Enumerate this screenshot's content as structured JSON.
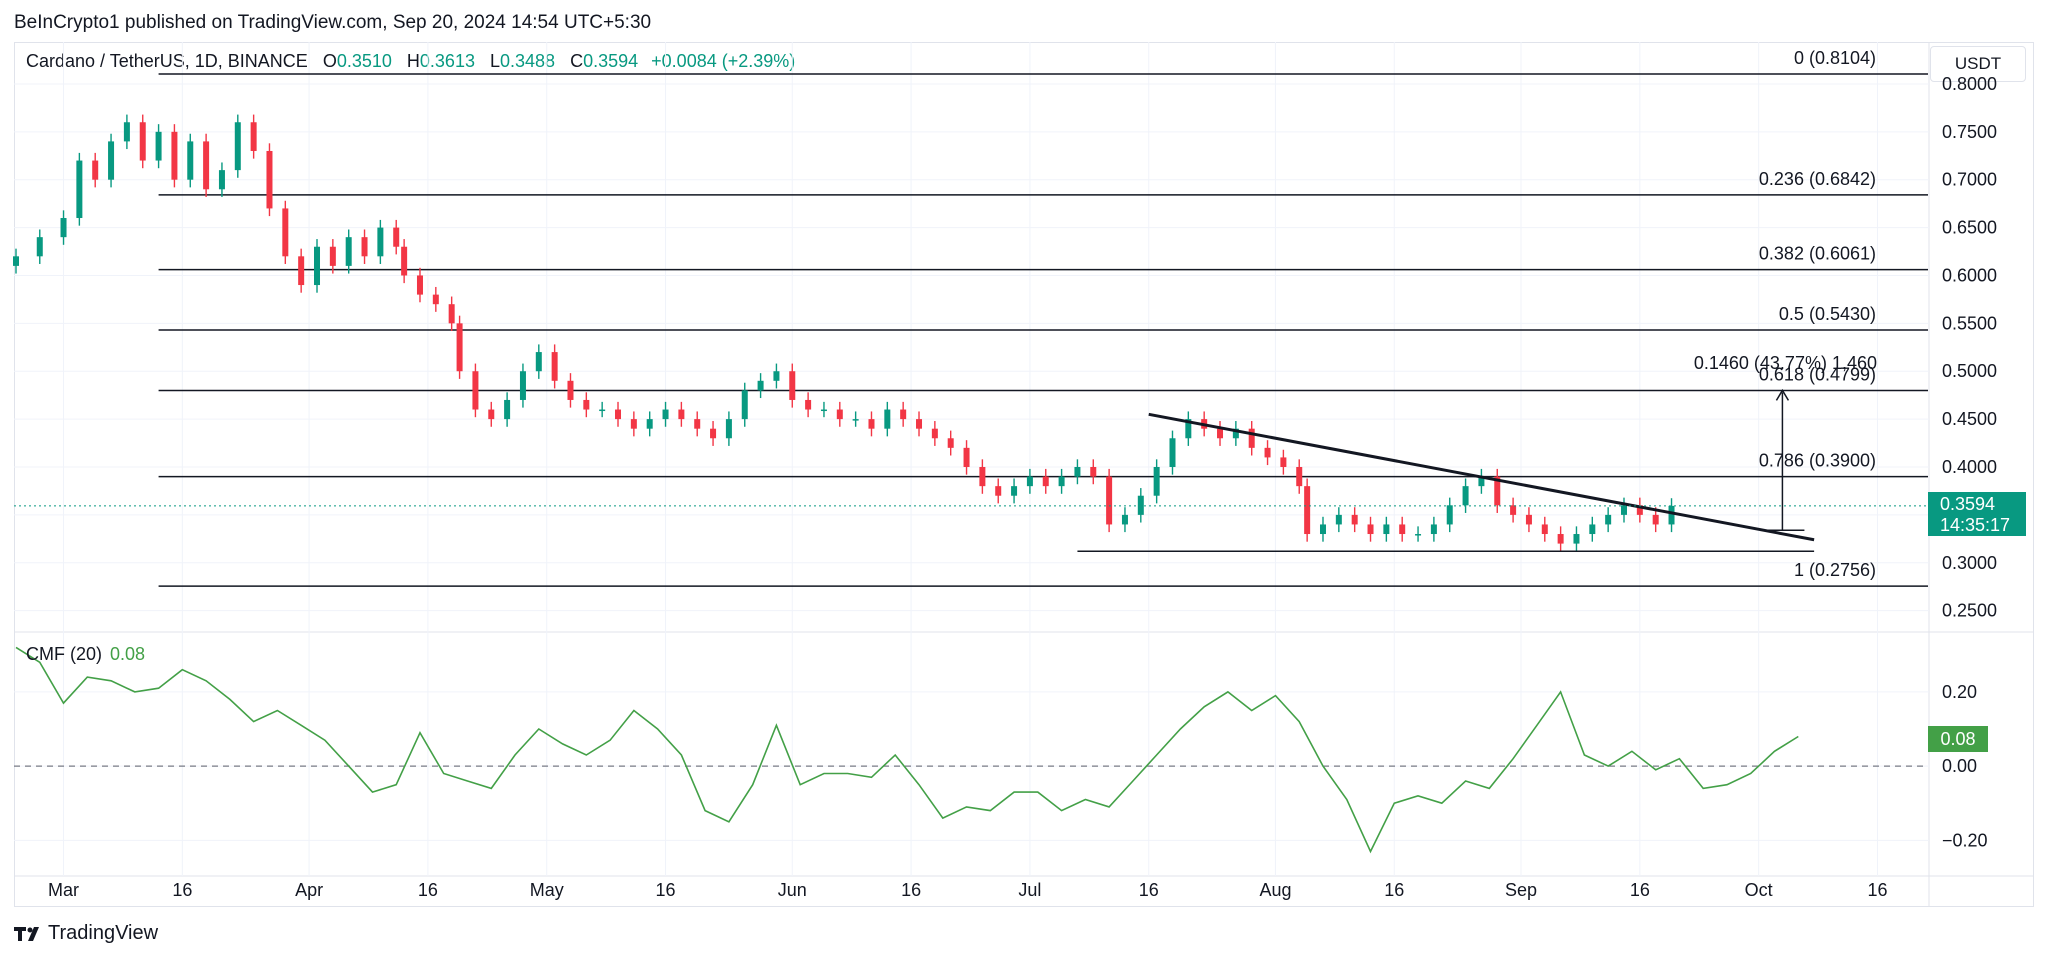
{
  "header": {
    "publisher": "BeInCrypto1 published on TradingView.com, Sep 20, 2024 14:54 UTC+5:30"
  },
  "legend": {
    "symbol": "Cardano / TetherUS, 1D, BINANCE",
    "open_label": "O",
    "open": "0.3510",
    "high_label": "H",
    "high": "0.3613",
    "low_label": "L",
    "low": "0.3488",
    "close_label": "C",
    "close": "0.3594",
    "change": "+0.0084 (+2.39%)"
  },
  "currency": "USDT",
  "price_badge": {
    "price": "0.3594",
    "countdown": "14:35:17"
  },
  "cmf": {
    "label": "CMF (20)",
    "value": "0.08",
    "badge": "0.08"
  },
  "footer": {
    "brand": "TradingView"
  },
  "colors": {
    "up": "#089981",
    "down": "#f23645",
    "cmf_line": "#43a047",
    "fib_line": "#131722"
  },
  "chart_data": [
    {
      "type": "candlestick",
      "x_range": [
        "2024-02-24",
        "2024-10-22"
      ],
      "ylim": [
        0.235,
        0.825
      ],
      "y_ticks": [
        0.25,
        0.3,
        0.35,
        0.4,
        0.45,
        0.5,
        0.55,
        0.6,
        0.65,
        0.7,
        0.75,
        0.8
      ],
      "y_tick_labels": [
        "0.2500",
        "0.3000",
        "0.3500",
        "0.4000",
        "0.4500",
        "0.5000",
        "0.5500",
        "0.6000",
        "0.6500",
        "0.7000",
        "0.7500",
        "0.8000"
      ],
      "x_ticks": [
        {
          "date": "2024-03-01",
          "label": "Mar"
        },
        {
          "date": "2024-03-16",
          "label": "16"
        },
        {
          "date": "2024-04-01",
          "label": "Apr"
        },
        {
          "date": "2024-04-16",
          "label": "16"
        },
        {
          "date": "2024-05-01",
          "label": "May"
        },
        {
          "date": "2024-05-16",
          "label": "16"
        },
        {
          "date": "2024-06-01",
          "label": "Jun"
        },
        {
          "date": "2024-06-16",
          "label": "16"
        },
        {
          "date": "2024-07-01",
          "label": "Jul"
        },
        {
          "date": "2024-07-16",
          "label": "16"
        },
        {
          "date": "2024-08-01",
          "label": "Aug"
        },
        {
          "date": "2024-08-16",
          "label": "16"
        },
        {
          "date": "2024-09-01",
          "label": "Sep"
        },
        {
          "date": "2024-09-16",
          "label": "16"
        },
        {
          "date": "2024-10-01",
          "label": "Oct"
        },
        {
          "date": "2024-10-16",
          "label": "16"
        }
      ],
      "closes": [
        [
          "2024-02-24",
          0.62
        ],
        [
          "2024-02-27",
          0.64
        ],
        [
          "2024-03-01",
          0.66
        ],
        [
          "2024-03-03",
          0.72
        ],
        [
          "2024-03-05",
          0.7
        ],
        [
          "2024-03-07",
          0.74
        ],
        [
          "2024-03-09",
          0.76
        ],
        [
          "2024-03-11",
          0.72
        ],
        [
          "2024-03-13",
          0.75
        ],
        [
          "2024-03-15",
          0.7
        ],
        [
          "2024-03-17",
          0.74
        ],
        [
          "2024-03-19",
          0.69
        ],
        [
          "2024-03-21",
          0.71
        ],
        [
          "2024-03-23",
          0.76
        ],
        [
          "2024-03-25",
          0.73
        ],
        [
          "2024-03-27",
          0.67
        ],
        [
          "2024-03-29",
          0.62
        ],
        [
          "2024-03-31",
          0.59
        ],
        [
          "2024-04-02",
          0.63
        ],
        [
          "2024-04-04",
          0.61
        ],
        [
          "2024-04-06",
          0.64
        ],
        [
          "2024-04-08",
          0.62
        ],
        [
          "2024-04-10",
          0.65
        ],
        [
          "2024-04-12",
          0.63
        ],
        [
          "2024-04-13",
          0.6
        ],
        [
          "2024-04-15",
          0.58
        ],
        [
          "2024-04-17",
          0.57
        ],
        [
          "2024-04-19",
          0.55
        ],
        [
          "2024-04-20",
          0.5
        ],
        [
          "2024-04-22",
          0.46
        ],
        [
          "2024-04-24",
          0.45
        ],
        [
          "2024-04-26",
          0.47
        ],
        [
          "2024-04-28",
          0.5
        ],
        [
          "2024-04-30",
          0.52
        ],
        [
          "2024-05-02",
          0.49
        ],
        [
          "2024-05-04",
          0.47
        ],
        [
          "2024-05-06",
          0.46
        ],
        [
          "2024-05-08",
          0.46
        ],
        [
          "2024-05-10",
          0.45
        ],
        [
          "2024-05-12",
          0.44
        ],
        [
          "2024-05-14",
          0.45
        ],
        [
          "2024-05-16",
          0.46
        ],
        [
          "2024-05-18",
          0.45
        ],
        [
          "2024-05-20",
          0.44
        ],
        [
          "2024-05-22",
          0.43
        ],
        [
          "2024-05-24",
          0.45
        ],
        [
          "2024-05-26",
          0.48
        ],
        [
          "2024-05-28",
          0.49
        ],
        [
          "2024-05-30",
          0.5
        ],
        [
          "2024-06-01",
          0.47
        ],
        [
          "2024-06-03",
          0.46
        ],
        [
          "2024-06-05",
          0.46
        ],
        [
          "2024-06-07",
          0.45
        ],
        [
          "2024-06-09",
          0.45
        ],
        [
          "2024-06-11",
          0.44
        ],
        [
          "2024-06-13",
          0.46
        ],
        [
          "2024-06-15",
          0.45
        ],
        [
          "2024-06-17",
          0.44
        ],
        [
          "2024-06-19",
          0.43
        ],
        [
          "2024-06-21",
          0.42
        ],
        [
          "2024-06-23",
          0.4
        ],
        [
          "2024-06-25",
          0.38
        ],
        [
          "2024-06-27",
          0.37
        ],
        [
          "2024-06-29",
          0.38
        ],
        [
          "2024-07-01",
          0.39
        ],
        [
          "2024-07-03",
          0.38
        ],
        [
          "2024-07-05",
          0.39
        ],
        [
          "2024-07-07",
          0.4
        ],
        [
          "2024-07-09",
          0.39
        ],
        [
          "2024-07-11",
          0.34
        ],
        [
          "2024-07-13",
          0.35
        ],
        [
          "2024-07-15",
          0.37
        ],
        [
          "2024-07-17",
          0.4
        ],
        [
          "2024-07-19",
          0.43
        ],
        [
          "2024-07-21",
          0.45
        ],
        [
          "2024-07-23",
          0.44
        ],
        [
          "2024-07-25",
          0.43
        ],
        [
          "2024-07-27",
          0.44
        ],
        [
          "2024-07-29",
          0.42
        ],
        [
          "2024-07-31",
          0.41
        ],
        [
          "2024-08-02",
          0.4
        ],
        [
          "2024-08-04",
          0.38
        ],
        [
          "2024-08-05",
          0.33
        ],
        [
          "2024-08-07",
          0.34
        ],
        [
          "2024-08-09",
          0.35
        ],
        [
          "2024-08-11",
          0.34
        ],
        [
          "2024-08-13",
          0.33
        ],
        [
          "2024-08-15",
          0.34
        ],
        [
          "2024-08-17",
          0.33
        ],
        [
          "2024-08-19",
          0.33
        ],
        [
          "2024-08-21",
          0.34
        ],
        [
          "2024-08-23",
          0.36
        ],
        [
          "2024-08-25",
          0.38
        ],
        [
          "2024-08-27",
          0.39
        ],
        [
          "2024-08-29",
          0.36
        ],
        [
          "2024-08-31",
          0.35
        ],
        [
          "2024-09-02",
          0.34
        ],
        [
          "2024-09-04",
          0.33
        ],
        [
          "2024-09-06",
          0.32
        ],
        [
          "2024-09-08",
          0.33
        ],
        [
          "2024-09-10",
          0.34
        ],
        [
          "2024-09-12",
          0.35
        ],
        [
          "2024-09-14",
          0.36
        ],
        [
          "2024-09-16",
          0.35
        ],
        [
          "2024-09-18",
          0.34
        ],
        [
          "2024-09-20",
          0.3594
        ]
      ],
      "fibonacci": [
        {
          "level": "0",
          "price": 0.8104,
          "label": "0 (0.8104)"
        },
        {
          "level": "0.236",
          "price": 0.6842,
          "label": "0.236 (0.6842)"
        },
        {
          "level": "0.382",
          "price": 0.6061,
          "label": "0.382 (0.6061)"
        },
        {
          "level": "0.5",
          "price": 0.543,
          "label": "0.5 (0.5430)"
        },
        {
          "level": "0.618",
          "price": 0.4799,
          "label": "0.618 (0.4799)"
        },
        {
          "level": "0.786",
          "price": 0.39,
          "label": "0.786 (0.3900)"
        },
        {
          "level": "1",
          "price": 0.2756,
          "label": "1 (0.2756)"
        }
      ],
      "fib_start": "2024-03-13",
      "trendline": {
        "from": [
          "2024-07-16",
          0.455
        ],
        "to": [
          "2024-10-08",
          0.324
        ]
      },
      "support_line": {
        "from": [
          "2024-07-07",
          0.312
        ],
        "to": [
          "2024-10-08",
          0.312
        ]
      },
      "measure": {
        "label": "0.1460 (43.77%) 1,460",
        "from": [
          "2024-10-04",
          0.334
        ],
        "to": [
          "2024-10-04",
          0.48
        ]
      },
      "current_price": 0.3594
    },
    {
      "type": "line",
      "name": "CMF (20)",
      "ylim": [
        -0.28,
        0.34
      ],
      "y_ticks": [
        0.2,
        0.0,
        -0.2
      ],
      "y_tick_labels": [
        "0.20",
        "0.00",
        "−0.20"
      ],
      "zero_line": 0.0,
      "points": [
        [
          "2024-02-24",
          0.32
        ],
        [
          "2024-02-27",
          0.28
        ],
        [
          "2024-03-01",
          0.17
        ],
        [
          "2024-03-04",
          0.24
        ],
        [
          "2024-03-07",
          0.23
        ],
        [
          "2024-03-10",
          0.2
        ],
        [
          "2024-03-13",
          0.21
        ],
        [
          "2024-03-16",
          0.26
        ],
        [
          "2024-03-19",
          0.23
        ],
        [
          "2024-03-22",
          0.18
        ],
        [
          "2024-03-25",
          0.12
        ],
        [
          "2024-03-28",
          0.15
        ],
        [
          "2024-03-31",
          0.11
        ],
        [
          "2024-04-03",
          0.07
        ],
        [
          "2024-04-06",
          0.0
        ],
        [
          "2024-04-09",
          -0.07
        ],
        [
          "2024-04-12",
          -0.05
        ],
        [
          "2024-04-15",
          0.09
        ],
        [
          "2024-04-18",
          -0.02
        ],
        [
          "2024-04-21",
          -0.04
        ],
        [
          "2024-04-24",
          -0.06
        ],
        [
          "2024-04-27",
          0.03
        ],
        [
          "2024-04-30",
          0.1
        ],
        [
          "2024-05-03",
          0.06
        ],
        [
          "2024-05-06",
          0.03
        ],
        [
          "2024-05-09",
          0.07
        ],
        [
          "2024-05-12",
          0.15
        ],
        [
          "2024-05-15",
          0.1
        ],
        [
          "2024-05-18",
          0.03
        ],
        [
          "2024-05-21",
          -0.12
        ],
        [
          "2024-05-24",
          -0.15
        ],
        [
          "2024-05-27",
          -0.05
        ],
        [
          "2024-05-30",
          0.11
        ],
        [
          "2024-06-02",
          -0.05
        ],
        [
          "2024-06-05",
          -0.02
        ],
        [
          "2024-06-08",
          -0.02
        ],
        [
          "2024-06-11",
          -0.03
        ],
        [
          "2024-06-14",
          0.03
        ],
        [
          "2024-06-17",
          -0.05
        ],
        [
          "2024-06-20",
          -0.14
        ],
        [
          "2024-06-23",
          -0.11
        ],
        [
          "2024-06-26",
          -0.12
        ],
        [
          "2024-06-29",
          -0.07
        ],
        [
          "2024-07-02",
          -0.07
        ],
        [
          "2024-07-05",
          -0.12
        ],
        [
          "2024-07-08",
          -0.09
        ],
        [
          "2024-07-11",
          -0.11
        ],
        [
          "2024-07-14",
          -0.04
        ],
        [
          "2024-07-17",
          0.03
        ],
        [
          "2024-07-20",
          0.1
        ],
        [
          "2024-07-23",
          0.16
        ],
        [
          "2024-07-26",
          0.2
        ],
        [
          "2024-07-29",
          0.15
        ],
        [
          "2024-08-01",
          0.19
        ],
        [
          "2024-08-04",
          0.12
        ],
        [
          "2024-08-07",
          0.0
        ],
        [
          "2024-08-10",
          -0.09
        ],
        [
          "2024-08-13",
          -0.23
        ],
        [
          "2024-08-16",
          -0.1
        ],
        [
          "2024-08-19",
          -0.08
        ],
        [
          "2024-08-22",
          -0.1
        ],
        [
          "2024-08-25",
          -0.04
        ],
        [
          "2024-08-28",
          -0.06
        ],
        [
          "2024-08-31",
          0.02
        ],
        [
          "2024-09-03",
          0.11
        ],
        [
          "2024-09-06",
          0.2
        ],
        [
          "2024-09-09",
          0.03
        ],
        [
          "2024-09-12",
          0.0
        ],
        [
          "2024-09-15",
          0.04
        ],
        [
          "2024-09-18",
          -0.01
        ],
        [
          "2024-09-21",
          0.02
        ],
        [
          "2024-09-24",
          -0.06
        ],
        [
          "2024-09-27",
          -0.05
        ],
        [
          "2024-09-30",
          -0.02
        ],
        [
          "2024-10-03",
          0.04
        ],
        [
          "2024-10-06",
          0.08
        ]
      ],
      "current_value": 0.08
    }
  ]
}
